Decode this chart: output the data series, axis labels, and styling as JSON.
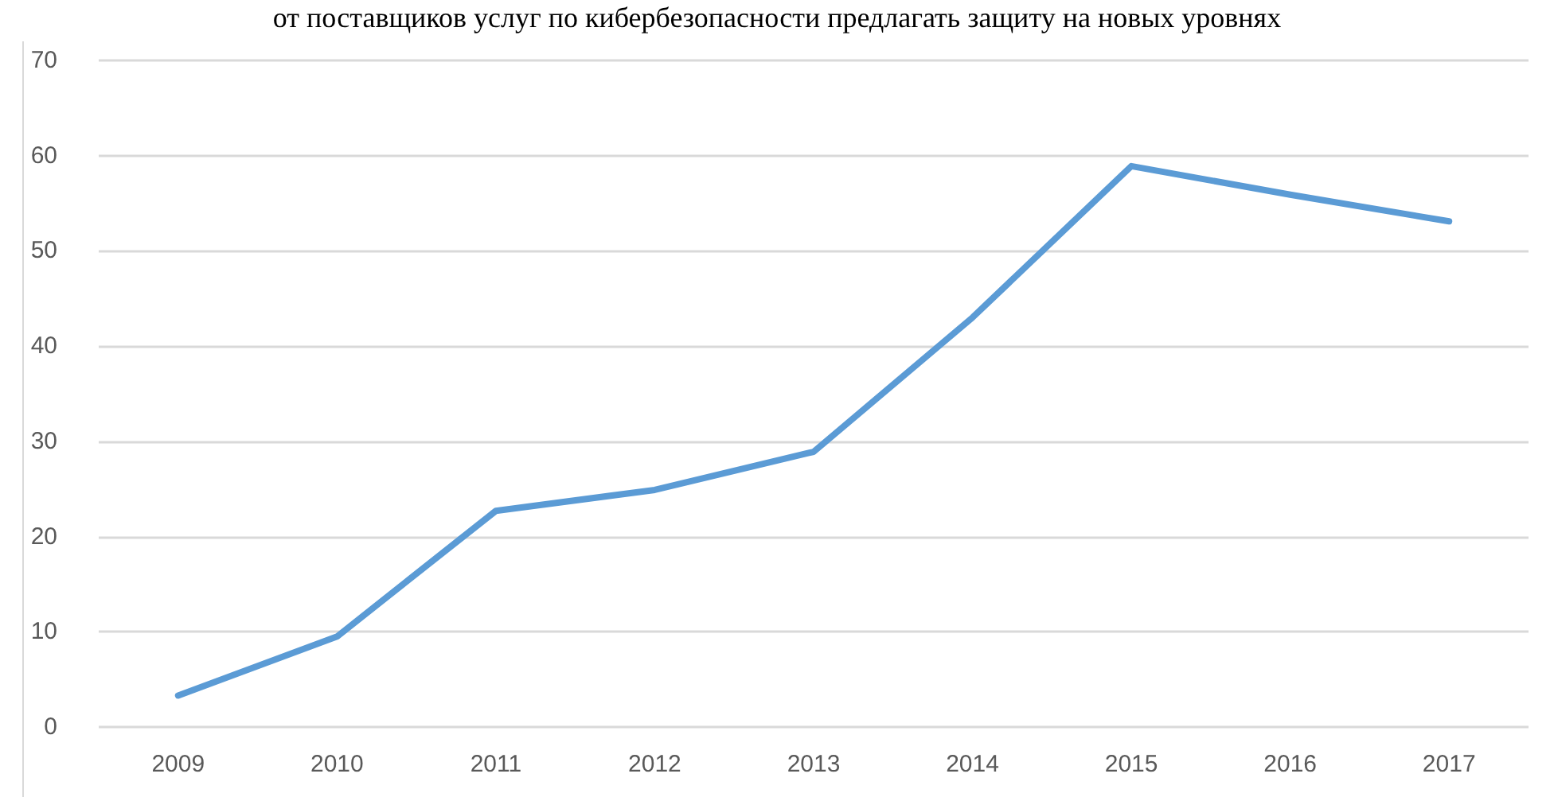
{
  "chart_data": {
    "type": "line",
    "annotations": [
      "от поставщиков услуг по кибербезопасности предлагать защиту на новых уровнях"
    ],
    "categories": [
      "2009",
      "2010",
      "2011",
      "2012",
      "2013",
      "2014",
      "2015",
      "2016",
      "2017"
    ],
    "series": [
      {
        "color": "#5b9bd5",
        "values": [
          3.3,
          9.5,
          22.7,
          24.9,
          28.9,
          43,
          58.9,
          55.9,
          53.1
        ]
      }
    ],
    "ylim": [
      0,
      70
    ],
    "yticks": [
      0,
      10,
      20,
      30,
      40,
      50,
      60,
      70
    ],
    "grid": "y",
    "marker": "none",
    "line_style": "solid"
  }
}
